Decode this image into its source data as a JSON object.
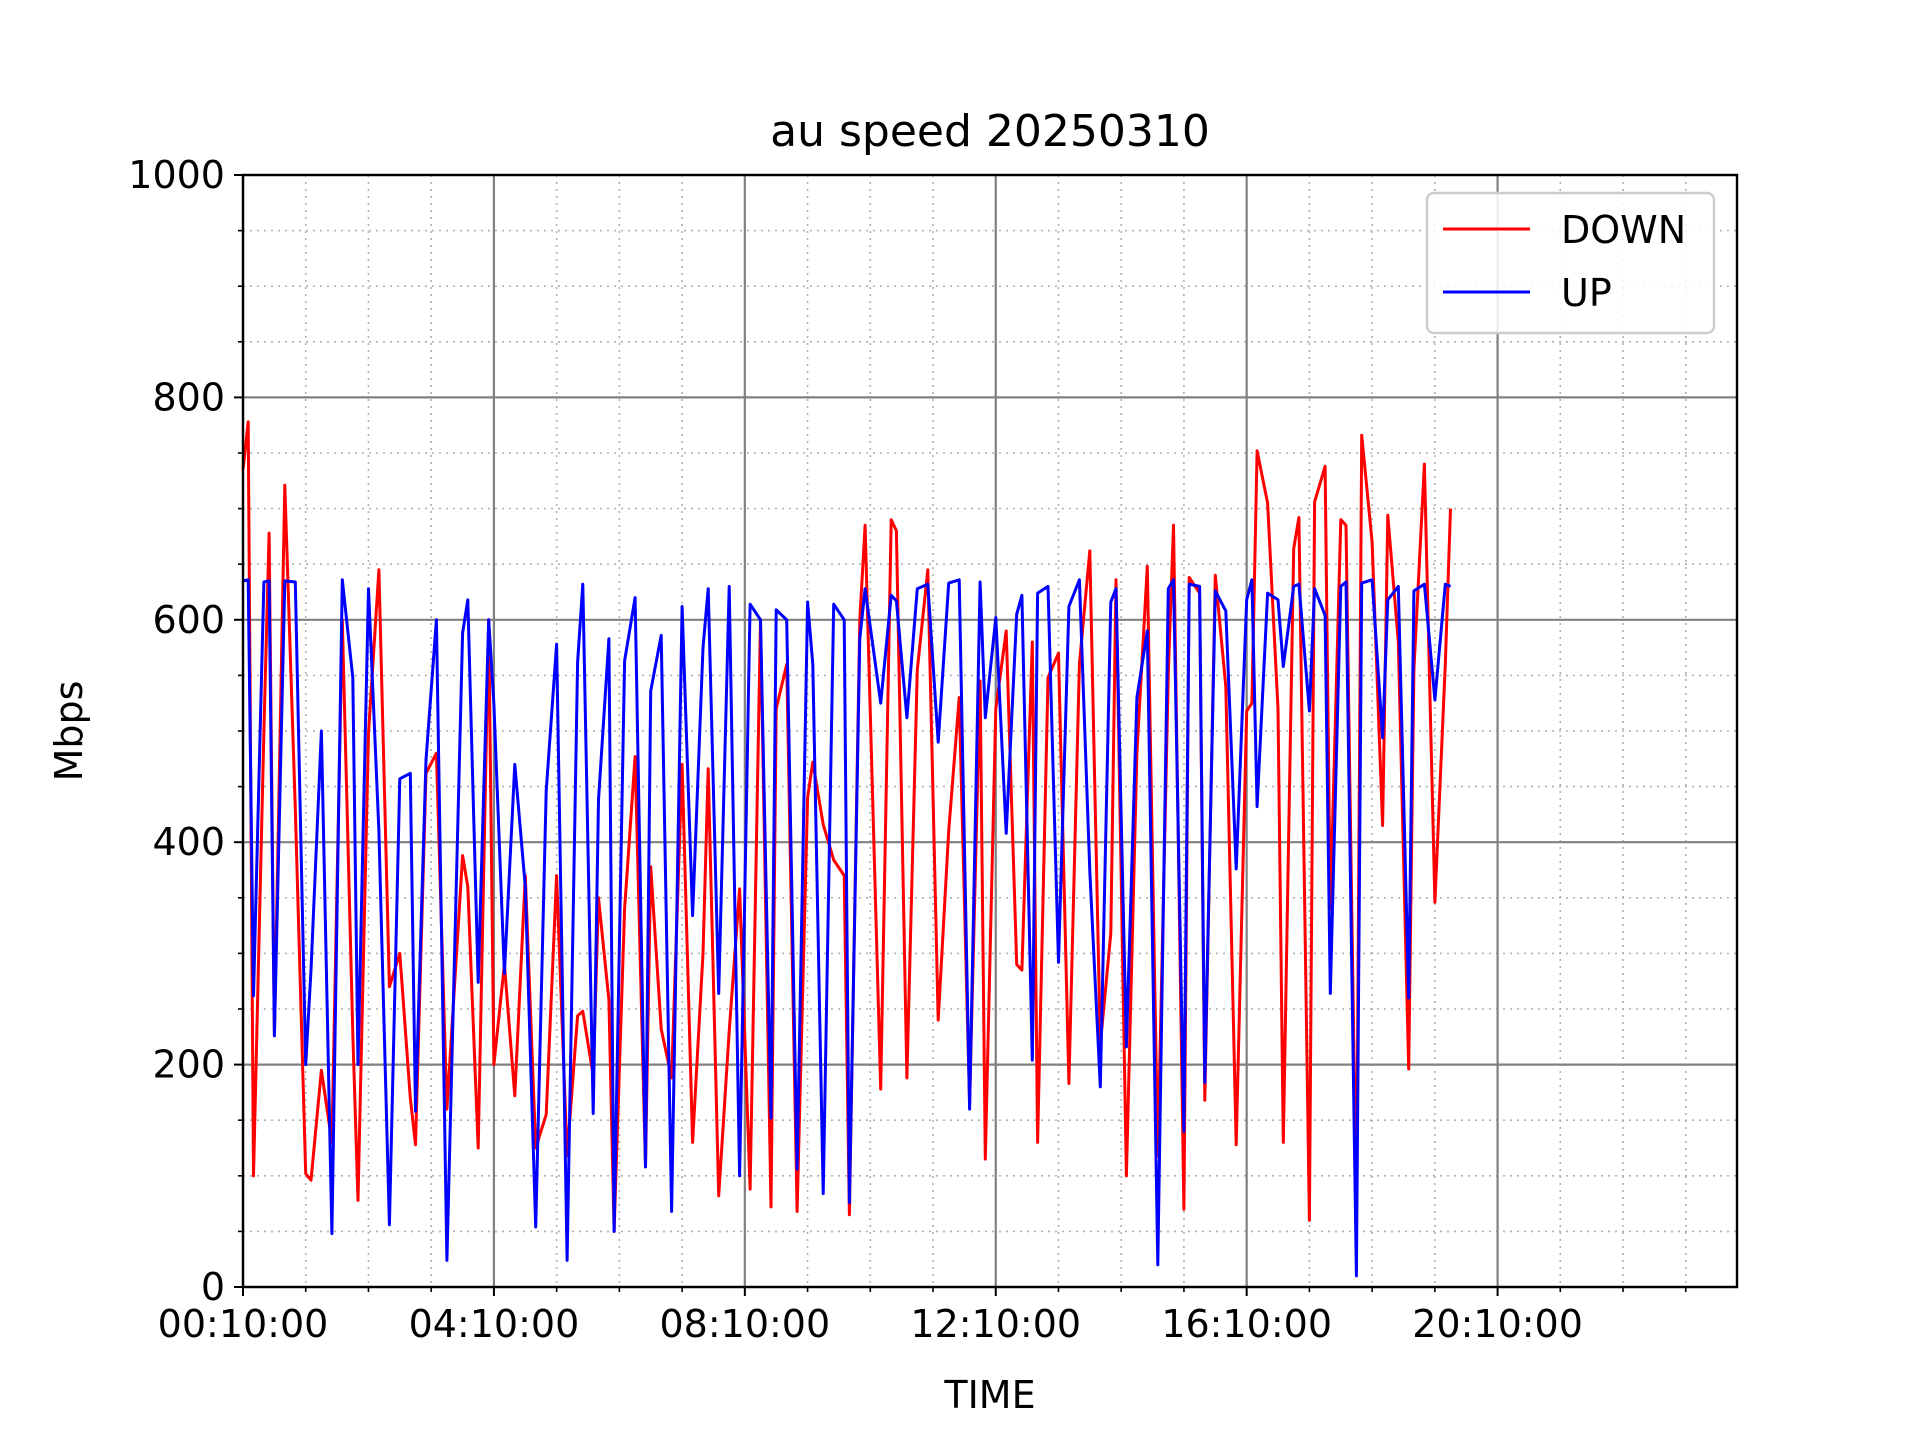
{
  "chart_data": {
    "type": "line",
    "title": "au speed 20250310",
    "xlabel": "TIME",
    "ylabel": "Mbps",
    "ylim": [
      0,
      1000
    ],
    "yticks": [
      0,
      200,
      400,
      600,
      800,
      1000
    ],
    "xlim": [
      "00:10:00",
      "23:59:00"
    ],
    "xticks": [
      "00:10:00",
      "04:10:00",
      "08:10:00",
      "12:10:00",
      "16:10:00",
      "20:10:00"
    ],
    "grid": true,
    "legend": "top-right",
    "series": [
      {
        "name": "DOWN",
        "color": "#ff0000",
        "points": [
          [
            "00:10:00",
            735
          ],
          [
            "00:15:00",
            778
          ],
          [
            "00:20:00",
            100
          ],
          [
            "00:30:00",
            500
          ],
          [
            "00:35:00",
            678
          ],
          [
            "00:40:00",
            226
          ],
          [
            "00:50:00",
            721
          ],
          [
            "01:00:00",
            430
          ],
          [
            "01:10:00",
            102
          ],
          [
            "01:15:00",
            96
          ],
          [
            "01:25:00",
            195
          ],
          [
            "01:35:00",
            130
          ],
          [
            "01:45:00",
            600
          ],
          [
            "01:55:00",
            228
          ],
          [
            "02:00:00",
            78
          ],
          [
            "02:10:00",
            498
          ],
          [
            "02:20:00",
            645
          ],
          [
            "02:30:00",
            270
          ],
          [
            "02:40:00",
            300
          ],
          [
            "02:50:00",
            170
          ],
          [
            "02:55:00",
            128
          ],
          [
            "03:05:00",
            462
          ],
          [
            "03:15:00",
            480
          ],
          [
            "03:25:00",
            160
          ],
          [
            "03:40:00",
            388
          ],
          [
            "03:45:00",
            360
          ],
          [
            "03:55:00",
            125
          ],
          [
            "04:05:00",
            600
          ],
          [
            "04:10:00",
            200
          ],
          [
            "04:20:00",
            290
          ],
          [
            "04:30:00",
            172
          ],
          [
            "04:40:00",
            370
          ],
          [
            "04:50:00",
            125
          ],
          [
            "05:00:00",
            155
          ],
          [
            "05:10:00",
            370
          ],
          [
            "05:20:00",
            118
          ],
          [
            "05:30:00",
            244
          ],
          [
            "05:35:00",
            248
          ],
          [
            "05:45:00",
            190
          ],
          [
            "05:50:00",
            350
          ],
          [
            "06:00:00",
            258
          ],
          [
            "06:05:00",
            50
          ],
          [
            "06:15:00",
            340
          ],
          [
            "06:25:00",
            477
          ],
          [
            "06:35:00",
            108
          ],
          [
            "06:40:00",
            378
          ],
          [
            "06:50:00",
            232
          ],
          [
            "07:00:00",
            188
          ],
          [
            "07:10:00",
            470
          ],
          [
            "07:20:00",
            130
          ],
          [
            "07:30:00",
            300
          ],
          [
            "07:35:00",
            466
          ],
          [
            "07:45:00",
            82
          ],
          [
            "07:55:00",
            230
          ],
          [
            "08:05:00",
            358
          ],
          [
            "08:15:00",
            88
          ],
          [
            "08:25:00",
            600
          ],
          [
            "08:35:00",
            72
          ],
          [
            "08:40:00",
            520
          ],
          [
            "08:50:00",
            560
          ],
          [
            "09:00:00",
            68
          ],
          [
            "09:10:00",
            440
          ],
          [
            "09:15:00",
            472
          ],
          [
            "09:25:00",
            416
          ],
          [
            "09:35:00",
            384
          ],
          [
            "09:45:00",
            370
          ],
          [
            "09:50:00",
            65
          ],
          [
            "10:00:00",
            600
          ],
          [
            "10:05:00",
            685
          ],
          [
            "10:20:00",
            178
          ],
          [
            "10:30:00",
            690
          ],
          [
            "10:35:00",
            680
          ],
          [
            "10:45:00",
            188
          ],
          [
            "10:55:00",
            555
          ],
          [
            "11:05:00",
            645
          ],
          [
            "11:15:00",
            240
          ],
          [
            "11:25:00",
            410
          ],
          [
            "11:35:00",
            530
          ],
          [
            "11:45:00",
            165
          ],
          [
            "11:55:00",
            545
          ],
          [
            "12:00:00",
            115
          ],
          [
            "12:10:00",
            520
          ],
          [
            "12:20:00",
            590
          ],
          [
            "12:30:00",
            290
          ],
          [
            "12:35:00",
            285
          ],
          [
            "12:45:00",
            580
          ],
          [
            "12:50:00",
            130
          ],
          [
            "13:00:00",
            548
          ],
          [
            "13:10:00",
            570
          ],
          [
            "13:20:00",
            183
          ],
          [
            "13:30:00",
            560
          ],
          [
            "13:40:00",
            662
          ],
          [
            "13:50:00",
            218
          ],
          [
            "14:00:00",
            318
          ],
          [
            "14:05:00",
            636
          ],
          [
            "14:15:00",
            100
          ],
          [
            "14:25:00",
            480
          ],
          [
            "14:35:00",
            648
          ],
          [
            "14:45:00",
            118
          ],
          [
            "14:55:00",
            552
          ],
          [
            "15:00:00",
            685
          ],
          [
            "15:10:00",
            70
          ],
          [
            "15:15:00",
            638
          ],
          [
            "15:25:00",
            624
          ],
          [
            "15:30:00",
            168
          ],
          [
            "15:40:00",
            640
          ],
          [
            "15:50:00",
            540
          ],
          [
            "16:00:00",
            128
          ],
          [
            "16:10:00",
            518
          ],
          [
            "16:15:00",
            525
          ],
          [
            "16:20:00",
            752
          ],
          [
            "16:30:00",
            705
          ],
          [
            "16:40:00",
            520
          ],
          [
            "16:45:00",
            130
          ],
          [
            "16:55:00",
            664
          ],
          [
            "17:00:00",
            692
          ],
          [
            "17:10:00",
            60
          ],
          [
            "17:15:00",
            706
          ],
          [
            "17:25:00",
            738
          ],
          [
            "17:30:00",
            340
          ],
          [
            "17:40:00",
            690
          ],
          [
            "17:45:00",
            685
          ],
          [
            "17:55:00",
            62
          ],
          [
            "18:00:00",
            766
          ],
          [
            "18:10:00",
            670
          ],
          [
            "18:20:00",
            415
          ],
          [
            "18:25:00",
            694
          ],
          [
            "18:35:00",
            580
          ],
          [
            "18:45:00",
            196
          ],
          [
            "18:50:00",
            555
          ],
          [
            "19:00:00",
            740
          ],
          [
            "19:10:00",
            346
          ],
          [
            "19:20:00",
            560
          ],
          [
            "19:25:00",
            700
          ]
        ]
      },
      {
        "name": "UP",
        "color": "#0000ff",
        "points": [
          [
            "00:10:00",
            635
          ],
          [
            "00:15:00",
            636
          ],
          [
            "00:20:00",
            262
          ],
          [
            "00:30:00",
            634
          ],
          [
            "00:35:00",
            635
          ],
          [
            "00:40:00",
            226
          ],
          [
            "00:50:00",
            635
          ],
          [
            "01:00:00",
            634
          ],
          [
            "01:10:00",
            200
          ],
          [
            "01:15:00",
            285
          ],
          [
            "01:25:00",
            500
          ],
          [
            "01:35:00",
            48
          ],
          [
            "01:45:00",
            636
          ],
          [
            "01:55:00",
            548
          ],
          [
            "02:00:00",
            200
          ],
          [
            "02:10:00",
            628
          ],
          [
            "02:20:00",
            410
          ],
          [
            "02:30:00",
            56
          ],
          [
            "02:40:00",
            457
          ],
          [
            "02:50:00",
            462
          ],
          [
            "02:55:00",
            158
          ],
          [
            "03:05:00",
            474
          ],
          [
            "03:15:00",
            600
          ],
          [
            "03:25:00",
            24
          ],
          [
            "03:40:00",
            588
          ],
          [
            "03:45:00",
            618
          ],
          [
            "03:55:00",
            274
          ],
          [
            "04:05:00",
            600
          ],
          [
            "04:10:00",
            524
          ],
          [
            "04:20:00",
            282
          ],
          [
            "04:30:00",
            470
          ],
          [
            "04:40:00",
            360
          ],
          [
            "04:50:00",
            54
          ],
          [
            "05:00:00",
            446
          ],
          [
            "05:10:00",
            578
          ],
          [
            "05:20:00",
            24
          ],
          [
            "05:30:00",
            562
          ],
          [
            "05:35:00",
            632
          ],
          [
            "05:45:00",
            156
          ],
          [
            "05:50:00",
            438
          ],
          [
            "06:00:00",
            583
          ],
          [
            "06:05:00",
            50
          ],
          [
            "06:15:00",
            563
          ],
          [
            "06:25:00",
            620
          ],
          [
            "06:35:00",
            108
          ],
          [
            "06:40:00",
            536
          ],
          [
            "06:50:00",
            586
          ],
          [
            "07:00:00",
            68
          ],
          [
            "07:10:00",
            612
          ],
          [
            "07:20:00",
            334
          ],
          [
            "07:30:00",
            575
          ],
          [
            "07:35:00",
            628
          ],
          [
            "07:45:00",
            264
          ],
          [
            "07:55:00",
            630
          ],
          [
            "08:05:00",
            100
          ],
          [
            "08:15:00",
            614
          ],
          [
            "08:25:00",
            600
          ],
          [
            "08:35:00",
            152
          ],
          [
            "08:40:00",
            609
          ],
          [
            "08:50:00",
            600
          ],
          [
            "09:00:00",
            106
          ],
          [
            "09:10:00",
            616
          ],
          [
            "09:15:00",
            560
          ],
          [
            "09:25:00",
            84
          ],
          [
            "09:35:00",
            614
          ],
          [
            "09:45:00",
            600
          ],
          [
            "09:50:00",
            76
          ],
          [
            "10:00:00",
            583
          ],
          [
            "10:05:00",
            628
          ],
          [
            "10:20:00",
            525
          ],
          [
            "10:30:00",
            622
          ],
          [
            "10:35:00",
            617
          ],
          [
            "10:45:00",
            512
          ],
          [
            "10:55:00",
            628
          ],
          [
            "11:05:00",
            632
          ],
          [
            "11:15:00",
            490
          ],
          [
            "11:25:00",
            633
          ],
          [
            "11:35:00",
            636
          ],
          [
            "11:45:00",
            160
          ],
          [
            "11:55:00",
            634
          ],
          [
            "12:00:00",
            512
          ],
          [
            "12:10:00",
            602
          ],
          [
            "12:20:00",
            408
          ],
          [
            "12:30:00",
            605
          ],
          [
            "12:35:00",
            622
          ],
          [
            "12:45:00",
            204
          ],
          [
            "12:50:00",
            624
          ],
          [
            "13:00:00",
            630
          ],
          [
            "13:10:00",
            292
          ],
          [
            "13:20:00",
            612
          ],
          [
            "13:30:00",
            636
          ],
          [
            "13:40:00",
            374
          ],
          [
            "13:50:00",
            180
          ],
          [
            "14:00:00",
            616
          ],
          [
            "14:05:00",
            628
          ],
          [
            "14:15:00",
            216
          ],
          [
            "14:25:00",
            530
          ],
          [
            "14:35:00",
            590
          ],
          [
            "14:45:00",
            20
          ],
          [
            "14:55:00",
            628
          ],
          [
            "15:00:00",
            636
          ],
          [
            "15:10:00",
            140
          ],
          [
            "15:15:00",
            632
          ],
          [
            "15:25:00",
            630
          ],
          [
            "15:30:00",
            184
          ],
          [
            "15:40:00",
            626
          ],
          [
            "15:50:00",
            608
          ],
          [
            "16:00:00",
            376
          ],
          [
            "16:10:00",
            618
          ],
          [
            "16:15:00",
            636
          ],
          [
            "16:20:00",
            432
          ],
          [
            "16:30:00",
            624
          ],
          [
            "16:40:00",
            618
          ],
          [
            "16:45:00",
            558
          ],
          [
            "16:55:00",
            630
          ],
          [
            "17:00:00",
            632
          ],
          [
            "17:10:00",
            518
          ],
          [
            "17:15:00",
            628
          ],
          [
            "17:25:00",
            604
          ],
          [
            "17:30:00",
            264
          ],
          [
            "17:40:00",
            630
          ],
          [
            "17:45:00",
            634
          ],
          [
            "17:55:00",
            10
          ],
          [
            "18:00:00",
            633
          ],
          [
            "18:10:00",
            636
          ],
          [
            "18:20:00",
            494
          ],
          [
            "18:25:00",
            618
          ],
          [
            "18:35:00",
            630
          ],
          [
            "18:45:00",
            260
          ],
          [
            "18:50:00",
            626
          ],
          [
            "19:00:00",
            632
          ],
          [
            "19:10:00",
            528
          ],
          [
            "19:20:00",
            632
          ],
          [
            "19:25:00",
            630
          ]
        ]
      }
    ]
  }
}
